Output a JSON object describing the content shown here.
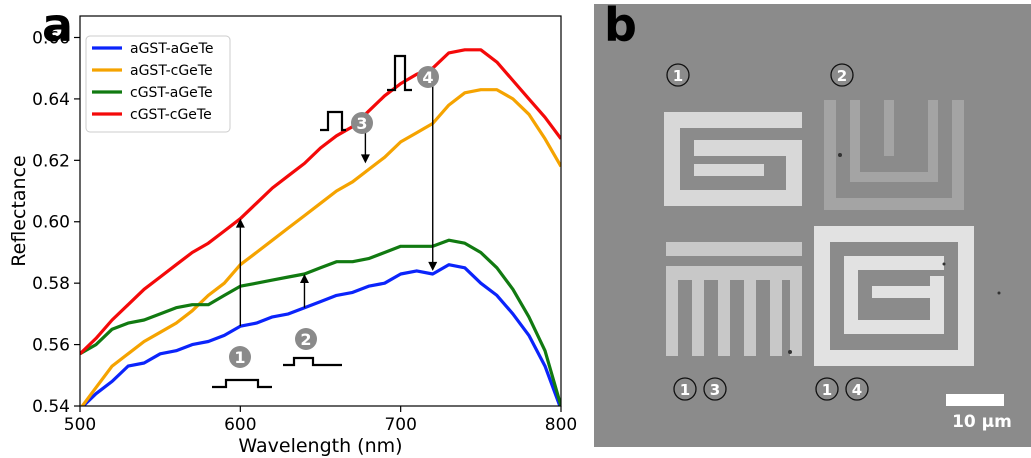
{
  "panels": {
    "a_label": "a",
    "b_label": "b"
  },
  "chart_data": {
    "type": "line",
    "xlabel": "Wavelength (nm)",
    "ylabel": "Reflectance",
    "xlim": [
      500,
      800
    ],
    "ylim": [
      0.54,
      0.667
    ],
    "xticks": [
      500,
      600,
      700,
      800
    ],
    "yticks": [
      0.54,
      0.56,
      0.58,
      0.6,
      0.62,
      0.64,
      0.66
    ],
    "xtick_labels": [
      "500",
      "600",
      "700",
      "800"
    ],
    "ytick_labels": [
      "0.54",
      "0.56",
      "0.58",
      "0.60",
      "0.62",
      "0.64",
      "0.66"
    ],
    "grid": false,
    "legend_position": "top-left",
    "series": [
      {
        "name": "aGST-aGeTe",
        "color": "#0b24fb",
        "x": [
          500,
          510,
          520,
          530,
          540,
          550,
          560,
          570,
          580,
          590,
          600,
          610,
          620,
          630,
          640,
          650,
          660,
          670,
          680,
          690,
          700,
          710,
          720,
          730,
          740,
          750,
          760,
          770,
          780,
          790,
          800
        ],
        "y": [
          0.539,
          0.544,
          0.548,
          0.553,
          0.554,
          0.557,
          0.558,
          0.56,
          0.561,
          0.563,
          0.566,
          0.567,
          0.569,
          0.57,
          0.572,
          0.574,
          0.576,
          0.577,
          0.579,
          0.58,
          0.583,
          0.584,
          0.583,
          0.586,
          0.585,
          0.58,
          0.576,
          0.57,
          0.563,
          0.553,
          0.539
        ]
      },
      {
        "name": "aGST-cGeTe",
        "color": "#f5a300",
        "x": [
          500,
          510,
          520,
          530,
          540,
          550,
          560,
          570,
          580,
          590,
          600,
          610,
          620,
          630,
          640,
          650,
          660,
          670,
          680,
          690,
          700,
          710,
          720,
          730,
          740,
          750,
          760,
          770,
          780,
          790,
          800
        ],
        "y": [
          0.539,
          0.546,
          0.553,
          0.557,
          0.561,
          0.564,
          0.567,
          0.571,
          0.576,
          0.58,
          0.586,
          0.59,
          0.594,
          0.598,
          0.602,
          0.606,
          0.61,
          0.613,
          0.617,
          0.621,
          0.626,
          0.629,
          0.632,
          0.638,
          0.642,
          0.643,
          0.643,
          0.64,
          0.635,
          0.627,
          0.618
        ]
      },
      {
        "name": "cGST-aGeTe",
        "color": "#117a11",
        "x": [
          500,
          510,
          520,
          530,
          540,
          550,
          560,
          570,
          580,
          590,
          600,
          610,
          620,
          630,
          640,
          650,
          660,
          670,
          680,
          690,
          700,
          710,
          720,
          730,
          740,
          750,
          760,
          770,
          780,
          790,
          800
        ],
        "y": [
          0.557,
          0.56,
          0.565,
          0.567,
          0.568,
          0.57,
          0.572,
          0.573,
          0.573,
          0.576,
          0.579,
          0.58,
          0.581,
          0.582,
          0.583,
          0.585,
          0.587,
          0.587,
          0.588,
          0.59,
          0.592,
          0.592,
          0.592,
          0.594,
          0.593,
          0.59,
          0.585,
          0.578,
          0.569,
          0.558,
          0.54
        ]
      },
      {
        "name": "cGST-cGeTe",
        "color": "#f40909",
        "x": [
          500,
          510,
          520,
          530,
          540,
          550,
          560,
          570,
          580,
          590,
          600,
          610,
          620,
          630,
          640,
          650,
          660,
          670,
          680,
          690,
          700,
          710,
          720,
          730,
          740,
          750,
          760,
          770,
          780,
          790,
          800
        ],
        "y": [
          0.557,
          0.562,
          0.568,
          0.573,
          0.578,
          0.582,
          0.586,
          0.59,
          0.593,
          0.597,
          0.601,
          0.606,
          0.611,
          0.615,
          0.619,
          0.624,
          0.628,
          0.631,
          0.636,
          0.641,
          0.645,
          0.648,
          0.65,
          0.655,
          0.656,
          0.656,
          0.652,
          0.646,
          0.64,
          0.634,
          0.627
        ]
      }
    ],
    "transition_arrows": [
      {
        "x": 600,
        "from": 0.566,
        "to": 0.601,
        "direction": "up"
      },
      {
        "x": 640,
        "from": 0.572,
        "to": 0.583,
        "direction": "up"
      },
      {
        "x": 678,
        "from": 0.633,
        "to": 0.619,
        "direction": "down"
      },
      {
        "x": 720,
        "from": 0.65,
        "to": 0.584,
        "direction": "down"
      }
    ],
    "annotations": [
      {
        "text": "1"
      },
      {
        "text": "2"
      },
      {
        "text": "3"
      },
      {
        "text": "4"
      }
    ]
  },
  "micrograph": {
    "markers": [
      "1",
      "2",
      "1",
      "3",
      "1",
      "4"
    ],
    "scale_bar_label": "10 µm"
  }
}
